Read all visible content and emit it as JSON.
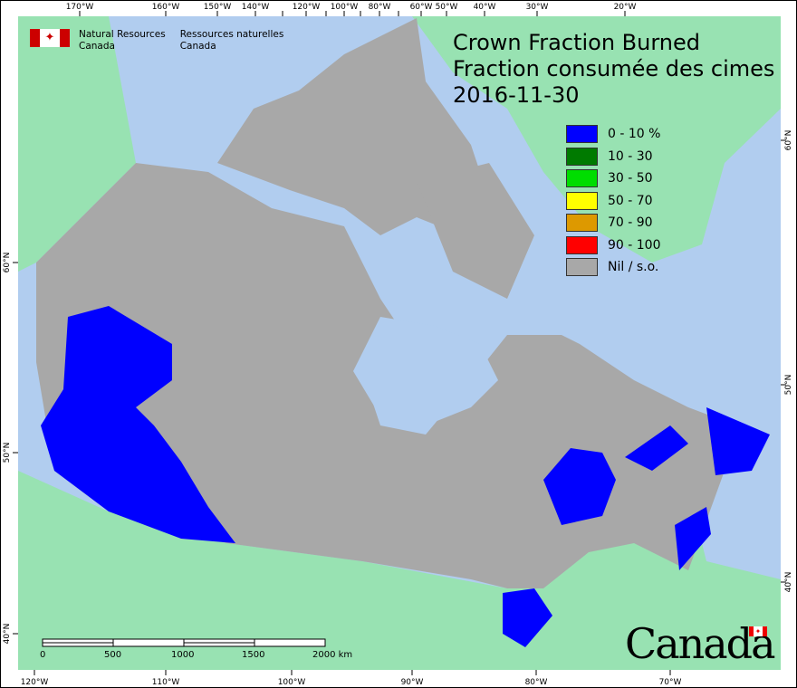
{
  "header": {
    "org_en_line1": "Natural Resources",
    "org_en_line2": "Canada",
    "org_fr_line1": "Ressources naturelles",
    "org_fr_line2": "Canada",
    "logo_text": "Canada"
  },
  "title": {
    "line1": "Crown Fraction Burned",
    "line2": "Fraction consumée des cimes",
    "date": "2016-11-30"
  },
  "legend": [
    {
      "label": "0 - 10 %",
      "color": "#0000ff"
    },
    {
      "label": "10 - 30",
      "color": "#007a00"
    },
    {
      "label": "30 - 50",
      "color": "#00dd00"
    },
    {
      "label": "50 - 70",
      "color": "#ffff00"
    },
    {
      "label": "70 - 90",
      "color": "#dd9900"
    },
    {
      "label": "90 - 100",
      "color": "#ff0000"
    },
    {
      "label": "Nil / s.o.",
      "color": "#a8a8a8"
    }
  ],
  "colors": {
    "ocean": "#b1cdef",
    "land_other": "#98e2b2",
    "canada_nodata": "#a8a8a8",
    "fire": "#0000ff"
  },
  "axes": {
    "top": [
      "170°W",
      "160°W",
      "150°W",
      "140°W",
      "",
      "120°W",
      "",
      "100°W",
      "",
      "80°W",
      "",
      "60°W",
      "50°W",
      "40°W",
      "30°W",
      "20°W"
    ],
    "bottom": [
      "120°W",
      "110°W",
      "100°W",
      "90°W",
      "80°W",
      "70°W"
    ],
    "left": [
      "60°N",
      "50°N",
      "40°N"
    ],
    "right": [
      "60°N",
      "50°N",
      "40°N"
    ]
  },
  "scale_bar": {
    "labels": [
      "0",
      "500",
      "1000",
      "1500",
      "2000 km"
    ]
  }
}
